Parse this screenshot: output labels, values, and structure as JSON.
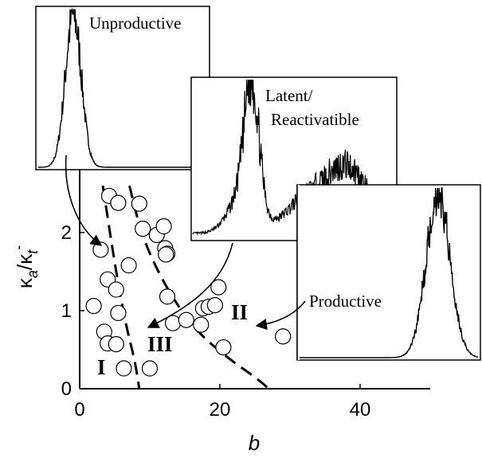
{
  "chart_data": {
    "type": "scatter",
    "xlabel": "b",
    "ylabel": "κ_a/κ_t^-",
    "ylabel_parts": {
      "kappa": "κ",
      "sub_a": "a",
      "slash": "/",
      "sub_t": "t",
      "sup_minus": "-"
    },
    "xlim": [
      0,
      55
    ],
    "ylim": [
      0,
      2.6
    ],
    "x_ticks": [
      "0",
      "20",
      "40"
    ],
    "y_ticks": [
      "0",
      "1",
      "2"
    ],
    "points": [
      [
        3.0,
        1.78
      ],
      [
        4.2,
        2.47
      ],
      [
        5.5,
        2.38
      ],
      [
        8.5,
        2.37
      ],
      [
        9.0,
        2.05
      ],
      [
        11.0,
        1.97
      ],
      [
        12.0,
        2.08
      ],
      [
        12.2,
        1.8
      ],
      [
        12.5,
        1.73
      ],
      [
        12.3,
        1.72
      ],
      [
        7.0,
        1.58
      ],
      [
        4.0,
        1.4
      ],
      [
        5.2,
        1.27
      ],
      [
        12.5,
        1.18
      ],
      [
        2.0,
        1.06
      ],
      [
        5.5,
        0.97
      ],
      [
        3.5,
        0.73
      ],
      [
        4.0,
        0.58
      ],
      [
        5.2,
        0.57
      ],
      [
        6.3,
        0.26
      ],
      [
        10.0,
        0.26
      ],
      [
        13.3,
        0.84
      ],
      [
        15.2,
        0.88
      ],
      [
        17.3,
        0.82
      ],
      [
        17.6,
        1.03
      ],
      [
        18.4,
        1.05
      ],
      [
        19.3,
        1.07
      ],
      [
        19.8,
        1.3
      ],
      [
        20.5,
        0.53
      ],
      [
        29.0,
        0.67
      ]
    ],
    "boundaries": [
      {
        "points": [
          [
            3.3,
            2.6
          ],
          [
            5.0,
            1.6
          ],
          [
            6.5,
            0.85
          ],
          [
            7.9,
            0.35
          ],
          [
            8.5,
            0.0
          ]
        ]
      },
      {
        "points": [
          [
            7.1,
            2.6
          ],
          [
            8.6,
            2.05
          ],
          [
            10.5,
            1.62
          ],
          [
            13.2,
            1.17
          ],
          [
            16.5,
            0.75
          ],
          [
            21.0,
            0.4
          ],
          [
            25.0,
            0.15
          ],
          [
            27.0,
            0.0
          ]
        ]
      }
    ],
    "regions": [
      "I",
      "III",
      "II"
    ],
    "insets": [
      {
        "label_lines": [
          "Unproductive"
        ]
      },
      {
        "label_lines": [
          "Latent/",
          "Reactivatible"
        ]
      },
      {
        "label_lines": [
          "Productive"
        ]
      }
    ]
  }
}
